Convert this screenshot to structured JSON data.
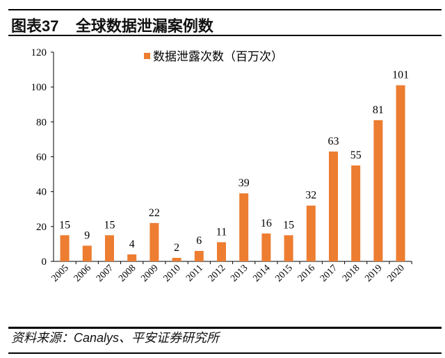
{
  "header": {
    "title": "图表37    全球数据泄漏案例数"
  },
  "footer": {
    "source": "资料来源：Canalys、平安证券研究所"
  },
  "chart_data": {
    "type": "bar",
    "title": "全球数据泄漏案例数",
    "categories": [
      "2005",
      "2006",
      "2007",
      "2008",
      "2009",
      "2010",
      "2011",
      "2012",
      "2013",
      "2014",
      "2015",
      "2016",
      "2017",
      "2018",
      "2019",
      "2020"
    ],
    "series": [
      {
        "name": "数据泄露次数（百万次）",
        "values": [
          15,
          9,
          15,
          4,
          22,
          2,
          6,
          11,
          39,
          16,
          15,
          32,
          63,
          55,
          81,
          101
        ],
        "color": "#ED7D31"
      }
    ],
    "yticks": [
      0,
      20,
      40,
      60,
      80,
      100,
      120
    ],
    "ylim": [
      0,
      120
    ],
    "xlabel": "",
    "ylabel": "",
    "legend": "top-center",
    "grid": false
  }
}
